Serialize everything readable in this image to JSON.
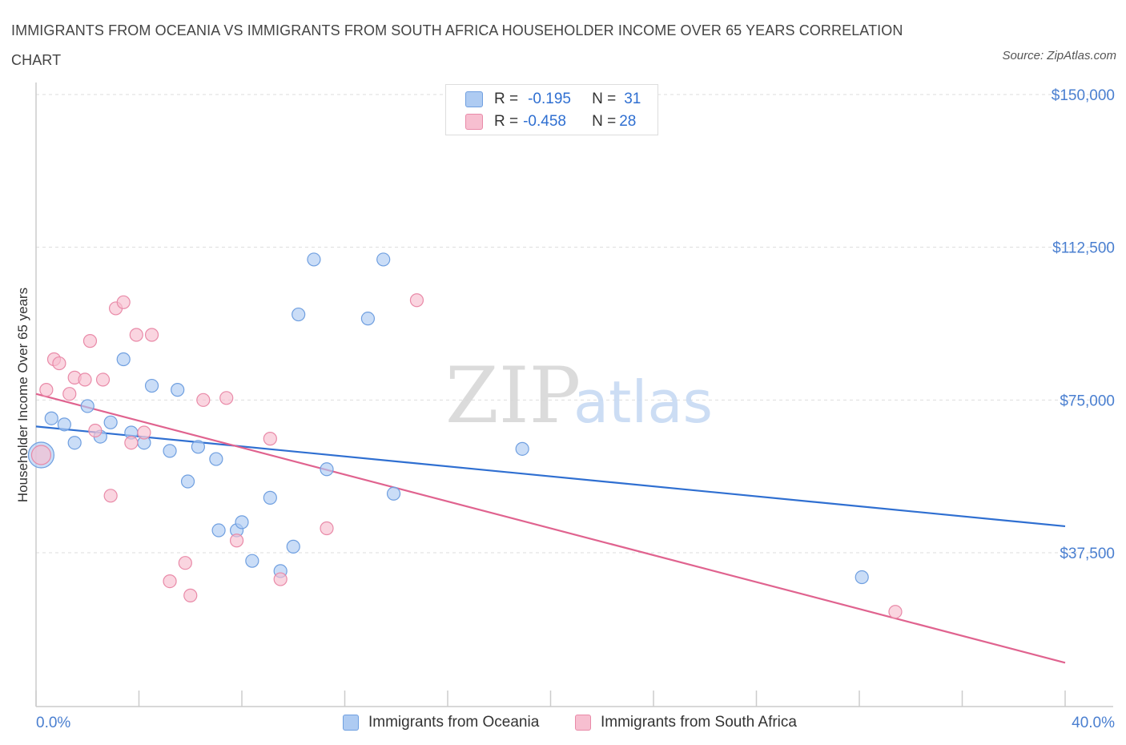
{
  "title": "IMMIGRANTS FROM OCEANIA VS IMMIGRANTS FROM SOUTH AFRICA HOUSEHOLDER INCOME OVER 65 YEARS CORRELATION CHART",
  "source": "Source: ZipAtlas.com",
  "watermark": {
    "zip": "ZIP",
    "atlas": "atlas"
  },
  "colors": {
    "blue_fill": "#aecbf2",
    "blue_stroke": "#6f9fe0",
    "blue_line": "#2f6fd1",
    "pink_fill": "#f7bfd0",
    "pink_stroke": "#e98aa8",
    "pink_line": "#e0638f",
    "grid": "#dddddd",
    "axis_text": "#4a7fd0"
  },
  "legend_stats": [
    {
      "r_label": "R = ",
      "r_value": "-0.195",
      "n_label": "N = ",
      "n_value": "31",
      "color": "#aecbf2",
      "border": "#6f9fe0"
    },
    {
      "r_label": "R = ",
      "r_value": "-0.458",
      "n_label": "N = ",
      "n_value": "28",
      "color": "#f7bfd0",
      "border": "#e98aa8"
    }
  ],
  "chart_data": {
    "type": "scatter",
    "title": "IMMIGRANTS FROM OCEANIA VS IMMIGRANTS FROM SOUTH AFRICA HOUSEHOLDER INCOME OVER 65 YEARS CORRELATION CHART",
    "xlabel": "",
    "ylabel": "Householder Income Over 65 years",
    "xlim": [
      0,
      40
    ],
    "ylim": [
      0,
      150000
    ],
    "x_tick_labels": [
      "0.0%",
      "40.0%"
    ],
    "y_ticks": [
      37500,
      75000,
      112500,
      150000
    ],
    "y_tick_labels": [
      "$37,500",
      "$75,000",
      "$112,500",
      "$150,000"
    ],
    "grid": true,
    "series": [
      {
        "name": "Immigrants from Oceania",
        "color": "#aecbf2",
        "trend": {
          "x": [
            0,
            40
          ],
          "y": [
            68500,
            44000
          ]
        },
        "points": [
          [
            0.2,
            61500
          ],
          [
            0.6,
            70500
          ],
          [
            1.1,
            69000
          ],
          [
            1.5,
            64500
          ],
          [
            2.0,
            73500
          ],
          [
            2.5,
            66000
          ],
          [
            2.9,
            69500
          ],
          [
            3.4,
            85000
          ],
          [
            3.7,
            67000
          ],
          [
            4.2,
            64500
          ],
          [
            4.5,
            78500
          ],
          [
            5.2,
            62500
          ],
          [
            5.5,
            77500
          ],
          [
            5.9,
            55000
          ],
          [
            6.3,
            63500
          ],
          [
            7.0,
            60500
          ],
          [
            7.1,
            43000
          ],
          [
            7.8,
            43000
          ],
          [
            8.0,
            45000
          ],
          [
            8.4,
            35500
          ],
          [
            9.1,
            51000
          ],
          [
            9.5,
            33000
          ],
          [
            10.0,
            39000
          ],
          [
            10.2,
            96000
          ],
          [
            10.8,
            109500
          ],
          [
            11.3,
            58000
          ],
          [
            12.9,
            95000
          ],
          [
            13.5,
            109500
          ],
          [
            13.9,
            52000
          ],
          [
            18.9,
            63000
          ],
          [
            32.1,
            31500
          ]
        ]
      },
      {
        "name": "Immigrants from South Africa",
        "color": "#f7bfd0",
        "trend": {
          "x": [
            0,
            40
          ],
          "y": [
            76500,
            10500
          ]
        },
        "points": [
          [
            0.2,
            61500
          ],
          [
            0.4,
            77500
          ],
          [
            0.7,
            85000
          ],
          [
            0.9,
            84000
          ],
          [
            1.3,
            76500
          ],
          [
            1.5,
            80500
          ],
          [
            1.9,
            80000
          ],
          [
            2.1,
            89500
          ],
          [
            2.3,
            67500
          ],
          [
            2.6,
            80000
          ],
          [
            2.9,
            51500
          ],
          [
            3.1,
            97500
          ],
          [
            3.4,
            99000
          ],
          [
            3.7,
            64500
          ],
          [
            3.9,
            91000
          ],
          [
            4.2,
            67000
          ],
          [
            4.5,
            91000
          ],
          [
            5.2,
            30500
          ],
          [
            5.8,
            35000
          ],
          [
            6.0,
            27000
          ],
          [
            6.5,
            75000
          ],
          [
            7.4,
            75500
          ],
          [
            7.8,
            40500
          ],
          [
            9.1,
            65500
          ],
          [
            9.5,
            31000
          ],
          [
            11.3,
            43500
          ],
          [
            14.8,
            99500
          ],
          [
            33.4,
            23000
          ]
        ]
      }
    ]
  }
}
